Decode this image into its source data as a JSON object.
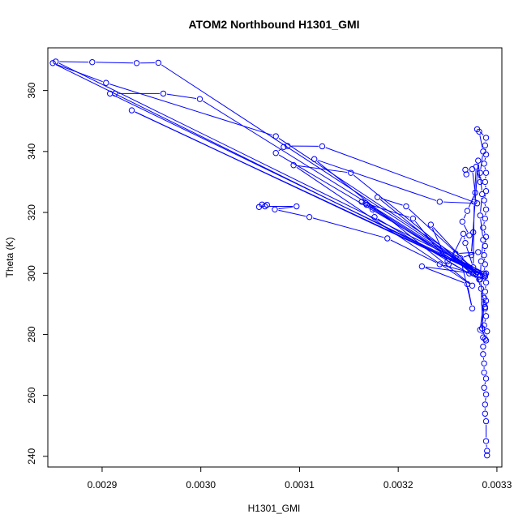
{
  "chart_data": {
    "type": "scatter",
    "title": "ATOM2 Northbound H1301_GMI",
    "xlabel": "H1301_GMI",
    "ylabel": "Theta (K)",
    "xlim": [
      0.002845,
      0.003305
    ],
    "ylim": [
      236.5,
      374
    ],
    "x_ticks": [
      0.0029,
      0.003,
      0.0031,
      0.0032,
      0.0033
    ],
    "x_tick_labels": [
      "0.0029",
      "0.0030",
      "0.0031",
      "0.0032",
      "0.0033"
    ],
    "y_ticks": [
      240,
      260,
      280,
      300,
      320,
      340,
      360
    ],
    "y_tick_labels": [
      "240",
      "260",
      "280",
      "300",
      "320",
      "340",
      "360"
    ],
    "grid": false,
    "legend": "none",
    "marker": "open-circle",
    "line_connected": true,
    "color": "#0000ff",
    "series": [
      {
        "points": [
          [
            0.00329,
            240.3
          ],
          [
            0.00329,
            241.8
          ],
          [
            0.003289,
            245.0
          ],
          [
            0.003289,
            251.5
          ],
          [
            0.003288,
            254.0
          ],
          [
            0.003288,
            257.0
          ],
          [
            0.003289,
            260.3
          ],
          [
            0.003287,
            262.5
          ],
          [
            0.003289,
            265.5
          ],
          [
            0.003287,
            267.5
          ],
          [
            0.003287,
            270.5
          ],
          [
            0.003286,
            273.5
          ],
          [
            0.003286,
            276.0
          ],
          [
            0.003288,
            278.5
          ],
          [
            0.00329,
            281.0
          ],
          [
            0.003287,
            283.0
          ],
          [
            0.003289,
            286.0
          ],
          [
            0.003288,
            288.5
          ],
          [
            0.003289,
            291.0
          ],
          [
            0.003288,
            294.0
          ],
          [
            0.003289,
            297.0
          ],
          [
            0.003287,
            300.0
          ],
          [
            0.003288,
            303.0
          ],
          [
            0.003287,
            306.0
          ],
          [
            0.003288,
            309.0
          ],
          [
            0.003289,
            312.0
          ],
          [
            0.003286,
            315.0
          ],
          [
            0.003288,
            318.0
          ],
          [
            0.003289,
            321.0
          ],
          [
            0.003287,
            324.0
          ],
          [
            0.003289,
            327.0
          ],
          [
            0.003288,
            330.0
          ],
          [
            0.003289,
            333.0
          ],
          [
            0.003287,
            336.0
          ],
          [
            0.003289,
            339.0
          ],
          [
            0.003288,
            342.0
          ],
          [
            0.003289,
            344.5
          ],
          [
            0.00328,
            347.3
          ],
          [
            0.003282,
            346.5
          ],
          [
            0.003286,
            340.0
          ],
          [
            0.003283,
            333.0
          ],
          [
            0.003285,
            326.0
          ],
          [
            0.003283,
            319.0
          ],
          [
            0.003286,
            311.0
          ],
          [
            0.003284,
            304.0
          ],
          [
            0.003283,
            298.0
          ],
          [
            0.003287,
            290.0
          ],
          [
            0.003285,
            282.0
          ],
          [
            0.003289,
            278.0
          ]
        ]
      },
      {
        "points": [
          [
            0.003289,
            300.0
          ],
          [
            0.002853,
            369.5
          ],
          [
            0.00289,
            369.3
          ],
          [
            0.002935,
            369.0
          ],
          [
            0.002957,
            369.1
          ],
          [
            0.003288,
            299.0
          ],
          [
            0.00285,
            369.0
          ],
          [
            0.002904,
            362.5
          ],
          [
            0.003076,
            345.0
          ],
          [
            0.003288,
            299.5
          ],
          [
            0.002908,
            359.0
          ],
          [
            0.002913,
            359.0
          ],
          [
            0.002962,
            359.0
          ],
          [
            0.002999,
            357.2
          ],
          [
            0.003288,
            299.0
          ],
          [
            0.00293,
            353.5
          ],
          [
            0.00328,
            300.5
          ],
          [
            0.003076,
            339.5
          ],
          [
            0.003084,
            341.5
          ],
          [
            0.003088,
            341.8
          ],
          [
            0.003123,
            341.7
          ],
          [
            0.00328,
            323.0
          ],
          [
            0.003242,
            323.5
          ],
          [
            0.003115,
            337.5
          ],
          [
            0.003275,
            296.0
          ],
          [
            0.003094,
            335.5
          ],
          [
            0.003152,
            333.0
          ],
          [
            0.003282,
            299.0
          ],
          [
            0.003163,
            323.5
          ],
          [
            0.003168,
            322.5
          ],
          [
            0.003174,
            321.0
          ],
          [
            0.003176,
            318.5
          ],
          [
            0.003282,
            298.0
          ],
          [
            0.003179,
            325.0
          ],
          [
            0.003208,
            322.0
          ],
          [
            0.003283,
            299.5
          ],
          [
            0.003167,
            323.0
          ],
          [
            0.003215,
            318.0
          ],
          [
            0.00325,
            304.0
          ],
          [
            0.003272,
            300.0
          ]
        ]
      },
      {
        "points": [
          [
            0.003067,
            322.5
          ],
          [
            0.003059,
            321.8
          ],
          [
            0.003062,
            322.6
          ],
          [
            0.003065,
            322.0
          ],
          [
            0.003097,
            322.0
          ],
          [
            0.003075,
            321.0
          ],
          [
            0.00311,
            318.5
          ],
          [
            0.003189,
            311.5
          ],
          [
            0.003242,
            303.0
          ],
          [
            0.003276,
            300.0
          ],
          [
            0.003224,
            302.3
          ],
          [
            0.00327,
            296.5
          ],
          [
            0.003275,
            288.5
          ],
          [
            0.003263,
            305.0
          ],
          [
            0.003281,
            307.0
          ],
          [
            0.003258,
            306.5
          ]
        ]
      },
      {
        "points": [
          [
            0.003268,
            334.0
          ],
          [
            0.003269,
            332.5
          ],
          [
            0.003275,
            334.2
          ],
          [
            0.003278,
            326.5
          ],
          [
            0.00327,
            320.5
          ],
          [
            0.003265,
            317.0
          ],
          [
            0.003272,
            312.5
          ],
          [
            0.003276,
            313.5
          ],
          [
            0.003274,
            306.0
          ],
          [
            0.003281,
            337.0
          ],
          [
            0.003283,
            330.0
          ],
          [
            0.003279,
            335.0
          ],
          [
            0.003277,
            323.5
          ],
          [
            0.003276,
            302.0
          ],
          [
            0.003268,
            310.0
          ],
          [
            0.003266,
            313.0
          ],
          [
            0.003251,
            303.0
          ],
          [
            0.003233,
            316.0
          ],
          [
            0.003279,
            300.0
          ],
          [
            0.003284,
            295.0
          ],
          [
            0.003286,
            279.0
          ],
          [
            0.003283,
            281.5
          ],
          [
            0.003287,
            292.0
          ],
          [
            0.003288,
            289.0
          ]
        ]
      }
    ]
  }
}
